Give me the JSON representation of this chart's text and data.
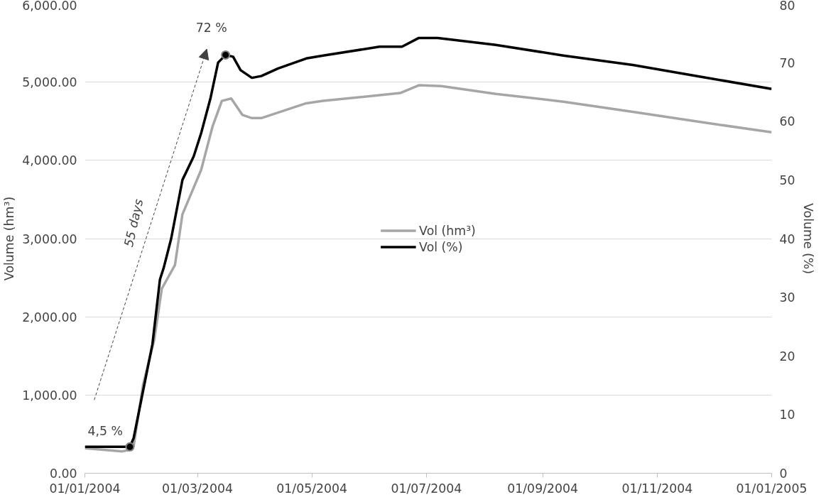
{
  "chart_data": {
    "type": "line",
    "xlabel": null,
    "ylabel": "Volume (hm³)",
    "y2label": "Volume (%)",
    "xlim": [
      "2004-01-01",
      "2005-01-01"
    ],
    "xticks": [
      {
        "value": "2004-01-01",
        "label": "01/01/2004"
      },
      {
        "value": "2004-03-01",
        "label": "01/03/2004"
      },
      {
        "value": "2004-05-01",
        "label": "01/05/2004"
      },
      {
        "value": "2004-07-01",
        "label": "01/07/2004"
      },
      {
        "value": "2004-09-01",
        "label": "01/09/2004"
      },
      {
        "value": "2004-11-01",
        "label": "01/11/2004"
      },
      {
        "value": "2005-01-01",
        "label": "01/01/2005"
      }
    ],
    "ylim": [
      0,
      6000
    ],
    "yticks": [
      {
        "value": 0,
        "label": "0.00"
      },
      {
        "value": 1000,
        "label": "1,000.00"
      },
      {
        "value": 2000,
        "label": "2,000.00"
      },
      {
        "value": 3000,
        "label": "3,000.00"
      },
      {
        "value": 4000,
        "label": "4,000.00"
      },
      {
        "value": 5000,
        "label": "5,000.00"
      },
      {
        "value": 6000,
        "label": "6,000.00"
      }
    ],
    "y2lim": [
      0,
      80
    ],
    "y2ticks": [
      0,
      10,
      20,
      30,
      40,
      50,
      60,
      70,
      80
    ],
    "grid": "y",
    "legend": "center",
    "line_style": "solid",
    "marker": "none",
    "series": [
      {
        "name": "Vol (hm³)",
        "color": "#a6a6a6",
        "x": [
          "2004-01-01",
          "2004-01-21",
          "2004-01-25",
          "2004-01-27",
          "2004-02-01",
          "2004-02-07",
          "2004-02-11",
          "2004-02-18",
          "2004-02-22",
          "2004-03-03",
          "2004-03-09",
          "2004-03-14",
          "2004-03-19",
          "2004-03-25",
          "2004-03-30",
          "2004-04-04",
          "2004-04-28",
          "2004-05-07",
          "2004-06-17",
          "2004-06-27",
          "2004-07-09",
          "2004-08-07",
          "2004-09-12",
          "2004-10-19",
          "2004-11-24",
          "2005-01-01"
        ],
        "values": [
          320,
          280,
          300,
          350,
          1130,
          1710,
          2360,
          2660,
          3310,
          3880,
          4430,
          4760,
          4790,
          4580,
          4540,
          4540,
          4730,
          4760,
          4860,
          4960,
          4950,
          4850,
          4750,
          4620,
          4490,
          4360
        ]
      },
      {
        "name": "Vol (%)",
        "color": "#000000",
        "axis": "y2",
        "x": [
          "2004-01-01",
          "2004-01-25",
          "2004-01-27",
          "2004-02-01",
          "2004-02-06",
          "2004-02-10",
          "2004-02-12",
          "2004-02-16",
          "2004-02-22",
          "2004-02-28",
          "2004-03-03",
          "2004-03-08",
          "2004-03-12",
          "2004-03-16",
          "2004-03-20",
          "2004-03-24",
          "2004-03-30",
          "2004-04-04",
          "2004-04-13",
          "2004-04-28",
          "2004-05-07",
          "2004-06-06",
          "2004-06-18",
          "2004-06-27",
          "2004-07-07",
          "2004-08-07",
          "2004-09-12",
          "2004-10-19",
          "2004-11-24",
          "2005-01-01"
        ],
        "values": [
          4.5,
          4.5,
          6,
          14,
          22,
          33,
          35,
          40,
          50,
          54,
          58,
          64,
          70,
          71.3,
          71,
          68.7,
          67.4,
          67.7,
          69,
          70.7,
          71.2,
          72.7,
          72.7,
          74.2,
          74.2,
          73,
          71.2,
          69.6,
          67.6,
          65.5
        ]
      }
    ],
    "annotations": [
      "4,5 %",
      "72 %",
      "55 days"
    ]
  }
}
